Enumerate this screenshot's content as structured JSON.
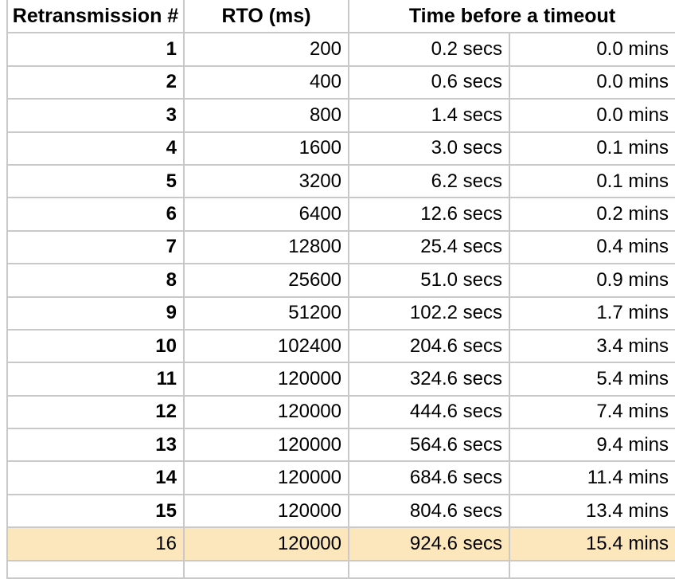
{
  "chart_data": {
    "type": "table",
    "header": {
      "retransmission": "Retransmission #",
      "rto": "RTO (ms)",
      "time": "Time before a timeout"
    },
    "columns": [
      "Retransmission #",
      "RTO (ms)",
      "Time before a timeout (secs)",
      "Time before a timeout (mins)"
    ],
    "rows": [
      {
        "n": "1",
        "rto": "200",
        "secs": "0.2 secs",
        "mins": "0.0 mins"
      },
      {
        "n": "2",
        "rto": "400",
        "secs": "0.6 secs",
        "mins": "0.0 mins"
      },
      {
        "n": "3",
        "rto": "800",
        "secs": "1.4 secs",
        "mins": "0.0 mins"
      },
      {
        "n": "4",
        "rto": "1600",
        "secs": "3.0 secs",
        "mins": "0.1 mins"
      },
      {
        "n": "5",
        "rto": "3200",
        "secs": "6.2 secs",
        "mins": "0.1 mins"
      },
      {
        "n": "6",
        "rto": "6400",
        "secs": "12.6 secs",
        "mins": "0.2 mins"
      },
      {
        "n": "7",
        "rto": "12800",
        "secs": "25.4 secs",
        "mins": "0.4 mins"
      },
      {
        "n": "8",
        "rto": "25600",
        "secs": "51.0 secs",
        "mins": "0.9 mins"
      },
      {
        "n": "9",
        "rto": "51200",
        "secs": "102.2 secs",
        "mins": "1.7 mins"
      },
      {
        "n": "10",
        "rto": "102400",
        "secs": "204.6 secs",
        "mins": "3.4 mins"
      },
      {
        "n": "11",
        "rto": "120000",
        "secs": "324.6 secs",
        "mins": "5.4 mins"
      },
      {
        "n": "12",
        "rto": "120000",
        "secs": "444.6 secs",
        "mins": "7.4 mins"
      },
      {
        "n": "13",
        "rto": "120000",
        "secs": "564.6 secs",
        "mins": "9.4 mins"
      },
      {
        "n": "14",
        "rto": "120000",
        "secs": "684.6 secs",
        "mins": "11.4 mins"
      },
      {
        "n": "15",
        "rto": "120000",
        "secs": "804.6 secs",
        "mins": "13.4 mins"
      },
      {
        "n": "16",
        "rto": "120000",
        "secs": "924.6 secs",
        "mins": "15.4 mins"
      }
    ],
    "highlighted_row": 16,
    "colors": {
      "highlight_background": "#FBE7BB",
      "grid_line": "#C9C9C9",
      "text": "#000000",
      "background": "#FFFFFF"
    }
  }
}
